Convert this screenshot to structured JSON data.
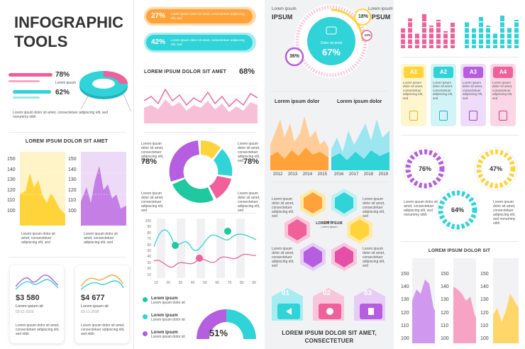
{
  "title": [
    "INFOGRAPHIC",
    "TOOLS"
  ],
  "lorem": "Lorem ipsum dolor sit amet, consectetuer adipiscing elit, sed nonummy nibh",
  "lorem_short": "Lorem ipsum dolor sit amet, consectetuer adipiscing elit, sed nibh",
  "lorem_side": "Lorem ipsum dolor sit amet, consectetuer adipiscing elit, sed nonummy nibh",
  "lorem_side_short": "Lorem ipsum dolor sit amet, consectetuer adipiscing elit, sed",
  "lorem_bar": "Lorem ipsum dolor sit amet, consectetuer adipiscing elit, sed",
  "lorem_small": "Lorem ipsum",
  "col1": {
    "legend_pct1": "78%",
    "legend_pct2": "62%",
    "legend_lorem": "Lorem ipsum",
    "area_title": "LOREM IPSUM DOLOR SIT AMET",
    "yticks": [
      "150",
      "140",
      "130",
      "120",
      "110",
      "100"
    ],
    "card1_value": "$3 580",
    "card1_label": "Lorem ipsum sit",
    "card1_date": "03-11-2019",
    "card2_value": "$4 677",
    "card2_label": "Lorem ipsum sit",
    "card2_date": "03-11-2018"
  },
  "col2": {
    "bar1_pct": "27%",
    "bar2_pct": "42%",
    "bar_text": "Lorem ipsum dolor sit amet, consectetuer adipiscing elit, sed",
    "line_title": "LOREM IPSUM DOLOR SIT AMET",
    "line_pct": "68%",
    "donut_left_pct": "78%",
    "donut_right_pct": "78%",
    "lines_yticks": [
      "100",
      "90",
      "80",
      "70",
      "60",
      "50",
      "40",
      "30",
      "20",
      "10"
    ],
    "lines_xticks": [
      "10",
      "20",
      "30",
      "40",
      "50",
      "60",
      "70",
      "80",
      "90"
    ],
    "legend_items": [
      "Lorem ipsum",
      "Lorem ipsum",
      "Lorem ipsum"
    ],
    "legend_sub": "Lorem ipsum dolor sit",
    "gauge_pct": "51%"
  },
  "col3": {
    "label_left_small": "Lorem ipsum",
    "label_left_big": "IPSUM",
    "label_right_small": "Lorem ipsum",
    "label_right_big": "IPSUM",
    "ring_center_pct": "67%",
    "ring_center_text": "Dolor sit amet",
    "ring_pct_18": "18%",
    "ring_pct_36": "36%",
    "ring_pct_11": "11%",
    "chart_left_title": "Lorem ipsum dolor",
    "chart_right_title": "Lorem ipsum dolor",
    "years_left": [
      "2012",
      "2013",
      "2014",
      "2015"
    ],
    "years_right": [
      "2016",
      "2017",
      "2018",
      "2019"
    ],
    "hex_center_title": "LOREM IPSUM",
    "steps": [
      "01",
      "02",
      "03"
    ],
    "footer": [
      "LOREM IPSUM DOLOR SIT AMET,",
      "CONSECTETUER"
    ]
  },
  "col4": {
    "tags": [
      "A1",
      "A2",
      "A3",
      "A4"
    ],
    "gear_pcts": [
      "76%",
      "47%",
      "64%"
    ],
    "bottom_title": "LOREM IPSUM DOLOR SIT",
    "yticks": [
      "150",
      "140",
      "130",
      "120",
      "110",
      "100"
    ]
  },
  "colors": {
    "pink": "#f0609a",
    "cyan": "#2fd3d8",
    "purple": "#b55ee0",
    "yellow": "#ffd43b",
    "orange": "#ffa23a",
    "teal_green": "#1ec9a0",
    "magenta": "#e64fa8"
  }
}
